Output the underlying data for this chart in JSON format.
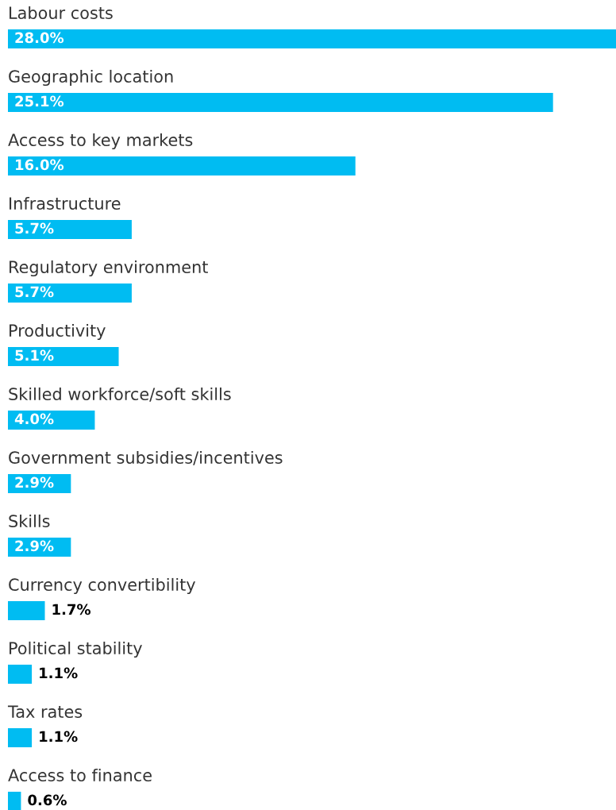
{
  "chart_data": {
    "type": "bar",
    "orientation": "horizontal",
    "color": "#00bcf2",
    "categories": [
      "Labour costs",
      "Geographic location",
      "Access to key markets",
      "Infrastructure",
      "Regulatory environment",
      "Productivity",
      "Skilled workforce/soft skills",
      "Government subsidies/incentives",
      "Skills",
      "Currency convertibility",
      "Political stability",
      "Tax rates",
      "Access to finance"
    ],
    "values": [
      28.0,
      25.1,
      16.0,
      5.7,
      5.7,
      5.1,
      4.0,
      2.9,
      2.9,
      1.7,
      1.1,
      1.1,
      0.6
    ],
    "value_labels": [
      "28.0%",
      "25.1%",
      "16.0%",
      "5.7%",
      "5.7%",
      "5.1%",
      "4.0%",
      "2.9%",
      "2.9%",
      "1.7%",
      "1.1%",
      "1.1%",
      "0.6%"
    ]
  }
}
